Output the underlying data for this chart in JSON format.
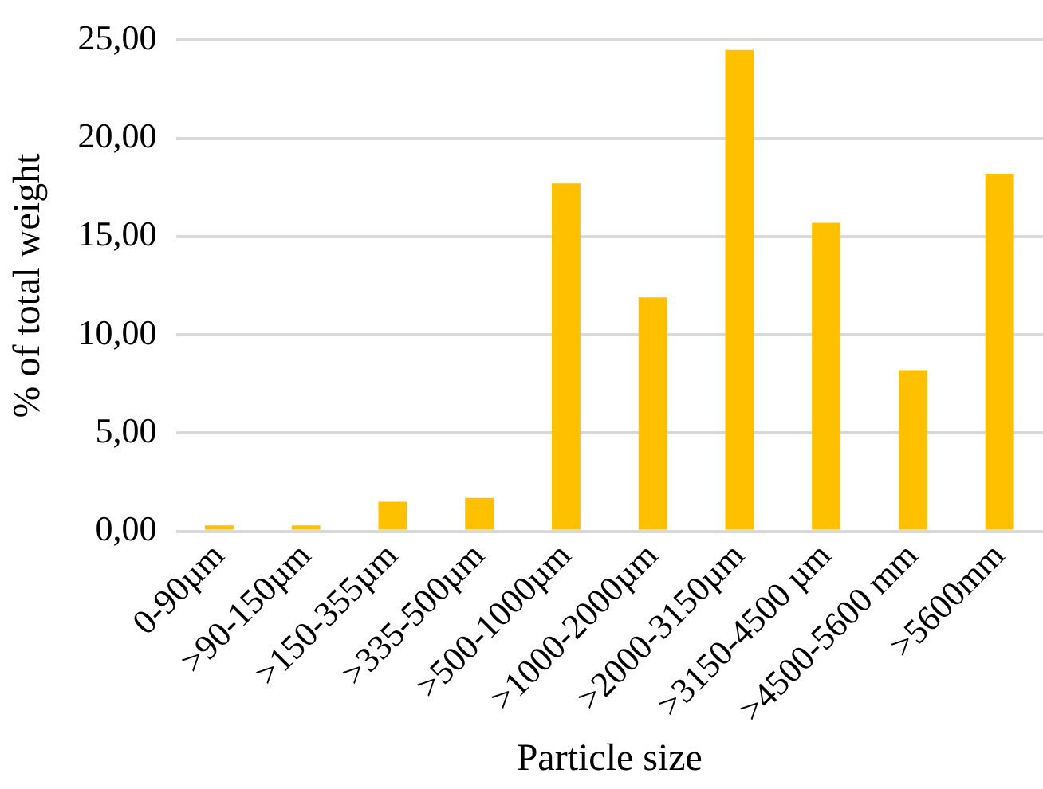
{
  "chart_data": {
    "type": "bar",
    "xlabel": "Particle size",
    "ylabel": "% of total weight",
    "categories": [
      "0-90µm",
      ">90-150µm",
      ">150-355µm",
      ">335-500µm",
      ">500-1000µm",
      ">1000-2000µm",
      ">2000-3150µm",
      ">3150-4500 µm",
      ">4500-5600 mm",
      ">5600mm"
    ],
    "values": [
      0.3,
      0.3,
      1.5,
      1.7,
      17.7,
      11.9,
      24.5,
      15.7,
      8.2,
      18.2
    ],
    "color": "#ffc000",
    "ylim": [
      0,
      25
    ],
    "yticks": [
      {
        "value": 0,
        "label": "0,00"
      },
      {
        "value": 5,
        "label": "5,00"
      },
      {
        "value": 10,
        "label": "10,00"
      },
      {
        "value": 15,
        "label": "15,00"
      },
      {
        "value": 20,
        "label": "20,00"
      },
      {
        "value": 25,
        "label": "25,00"
      }
    ],
    "grid": "y",
    "legend": false
  }
}
